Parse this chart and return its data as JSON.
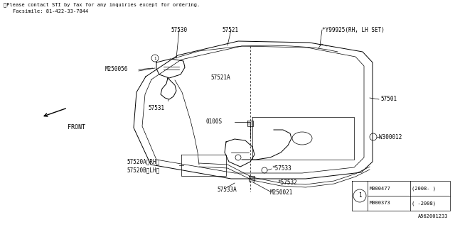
{
  "title_line1": "※Please contact STI by fax for any inquiries except for ordering.",
  "title_line2": "Facsimile: 81-422-33-7844",
  "bg_color": "#ffffff",
  "line_color": "#000000",
  "diagram_id": "A562001233",
  "legend_rows": [
    {
      "col1": "M000373",
      "col2": "( -2008)"
    },
    {
      "col1": "M000477",
      "col2": "(2008- )"
    }
  ]
}
